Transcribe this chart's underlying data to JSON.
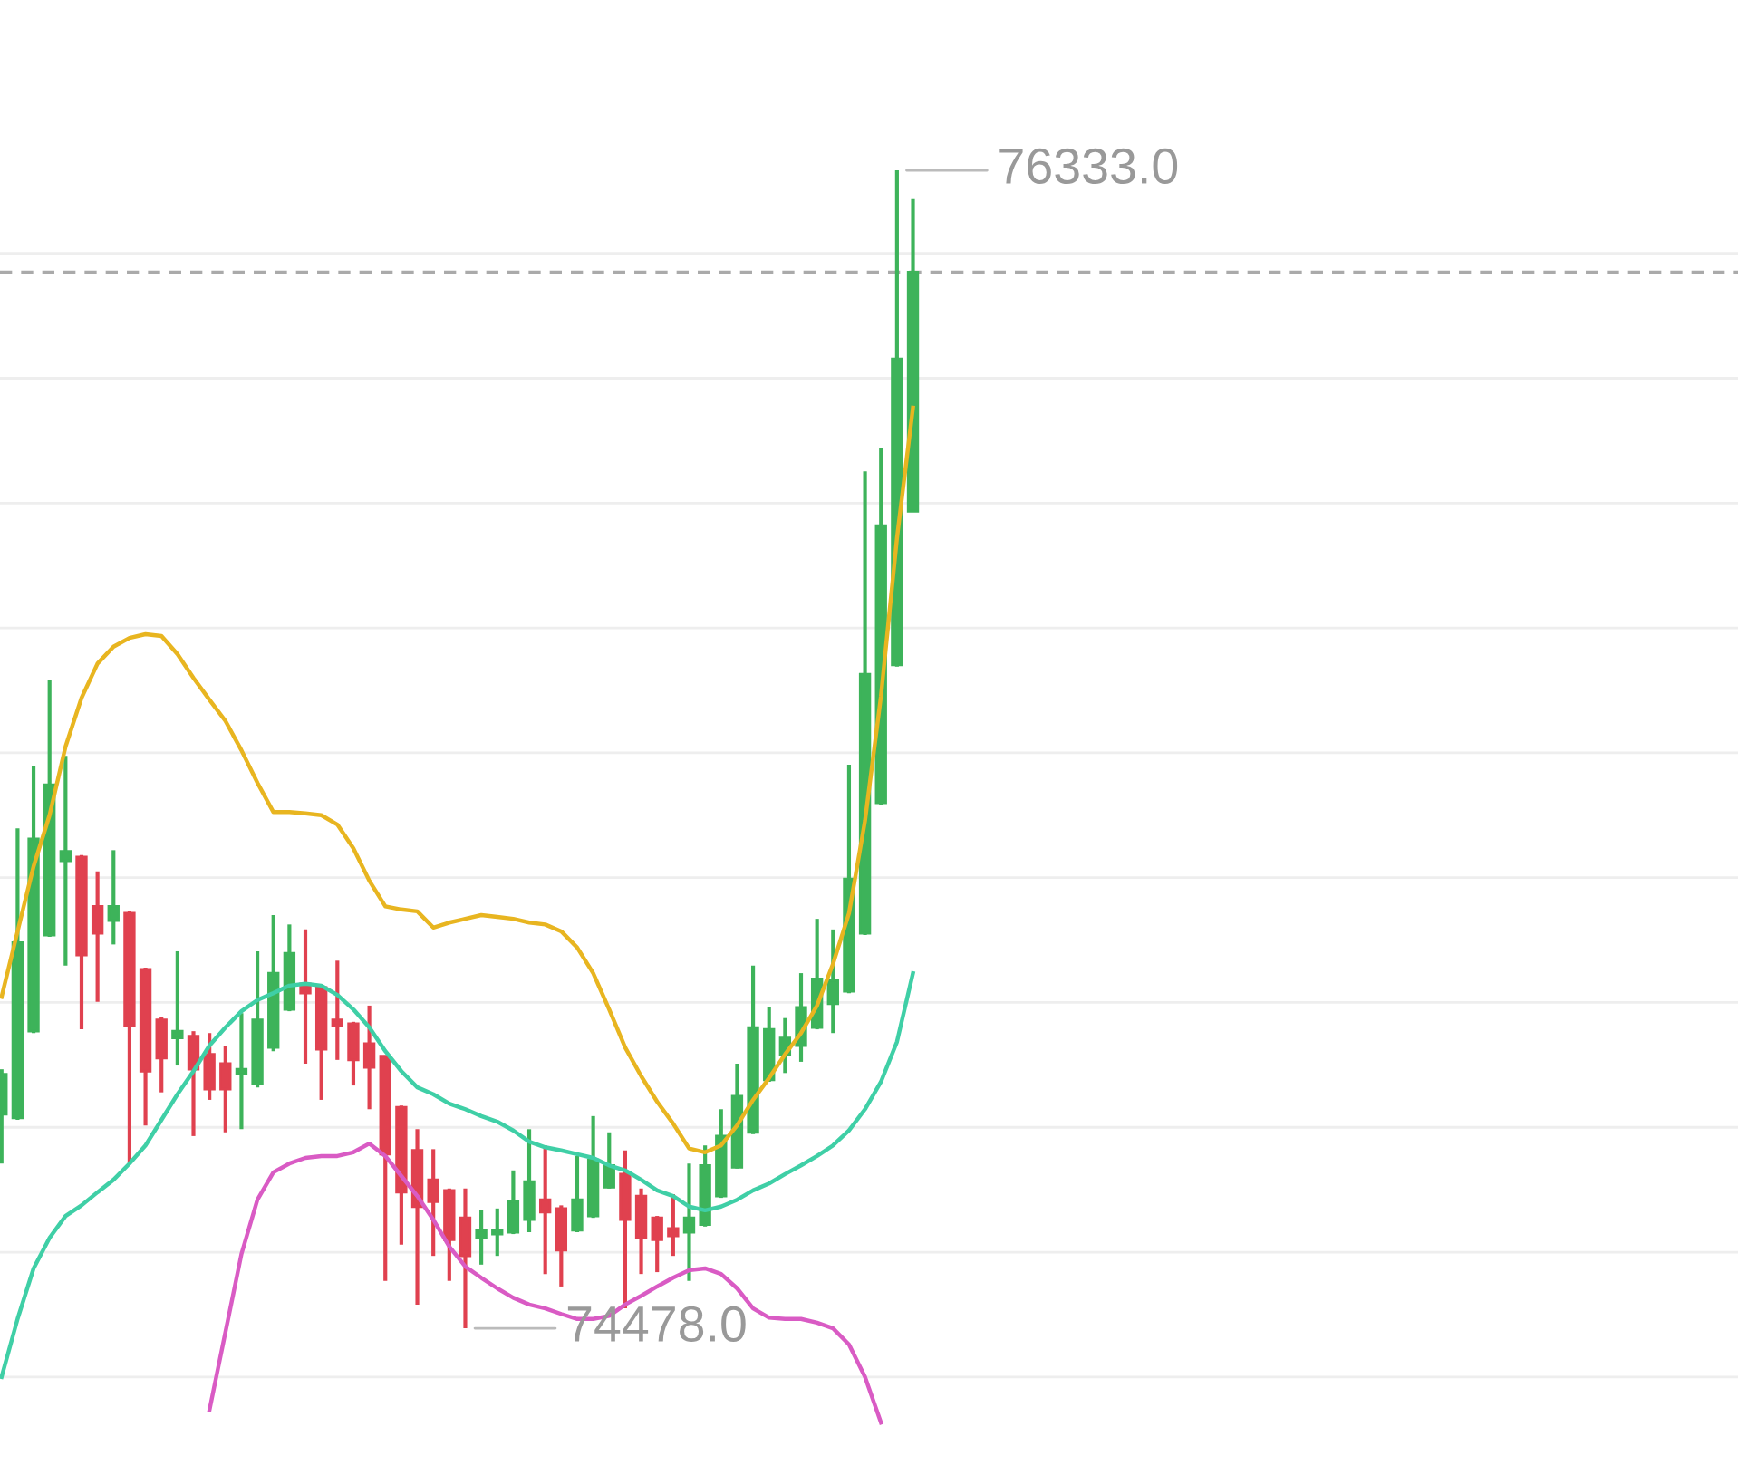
{
  "chart_data": {
    "type": "candlestick",
    "categories": [
      null,
      null,
      null,
      null,
      null,
      null,
      null,
      null,
      null,
      null,
      null,
      null,
      null,
      null,
      null,
      null,
      null,
      null,
      null,
      null,
      null,
      null,
      null,
      null,
      null,
      null,
      null,
      null,
      null,
      null,
      null,
      null,
      null,
      null,
      null,
      null,
      null,
      null,
      null,
      null,
      null,
      null,
      null,
      null,
      null,
      null,
      null,
      null,
      null,
      null,
      null,
      null,
      null,
      null,
      null,
      null,
      null,
      null
    ],
    "ohlc": [
      [
        74821,
        74893,
        74742,
        74885
      ],
      [
        74815,
        75279,
        74812,
        75096
      ],
      [
        74954,
        75378,
        74951,
        75262
      ],
      [
        75108,
        75517,
        75105,
        75349
      ],
      [
        75227,
        75395,
        75059,
        75242
      ],
      [
        75233,
        75236,
        74957,
        75076
      ],
      [
        75154,
        75210,
        75001,
        75111
      ],
      [
        75131,
        75244,
        75093,
        75154
      ],
      [
        75143,
        75146,
        74742,
        74963
      ],
      [
        75053,
        75056,
        74803,
        74890
      ],
      [
        74972,
        74977,
        74856,
        74911
      ],
      [
        74943,
        75082,
        74899,
        74954
      ],
      [
        74946,
        74954,
        74786,
        74893
      ],
      [
        74917,
        74951,
        74844,
        74861
      ],
      [
        74902,
        74931,
        74792,
        74861
      ],
      [
        74885,
        74983,
        74797,
        74893
      ],
      [
        74870,
        75082,
        74864,
        74972
      ],
      [
        74928,
        75140,
        74922,
        75047
      ],
      [
        74989,
        75125,
        74986,
        75079
      ],
      [
        75030,
        75117,
        74902,
        75015
      ],
      [
        75024,
        75027,
        74844,
        74925
      ],
      [
        74972,
        75067,
        74908,
        74963
      ],
      [
        74966,
        74969,
        74867,
        74908
      ],
      [
        74934,
        74995,
        74829,
        74896
      ],
      [
        74914,
        74914,
        74554,
        74757
      ],
      [
        74832,
        74835,
        74612,
        74696
      ],
      [
        74763,
        74797,
        74516,
        74673
      ],
      [
        74716,
        74765,
        74594,
        74681
      ],
      [
        74699,
        74702,
        74554,
        74620
      ],
      [
        74655,
        74702,
        74478,
        74594
      ],
      [
        74623,
        74667,
        74580,
        74635
      ],
      [
        74629,
        74670,
        74594,
        74635
      ],
      [
        74632,
        74731,
        74629,
        74681
      ],
      [
        74652,
        74797,
        74632,
        74713
      ],
      [
        74684,
        74771,
        74565,
        74664
      ],
      [
        74670,
        74675,
        74545,
        74603
      ],
      [
        74635,
        74754,
        74632,
        74684
      ],
      [
        74658,
        74818,
        74655,
        74748
      ],
      [
        74704,
        74792,
        74702,
        74739
      ],
      [
        74725,
        74763,
        74510,
        74652
      ],
      [
        74690,
        74702,
        74565,
        74623
      ],
      [
        74655,
        74658,
        74568,
        74620
      ],
      [
        74638,
        74693,
        74594,
        74626
      ],
      [
        74632,
        74742,
        74554,
        74655
      ],
      [
        74644,
        74771,
        74641,
        74739
      ],
      [
        74690,
        74829,
        74687,
        74786
      ],
      [
        74736,
        74902,
        74734,
        74850
      ],
      [
        74792,
        75059,
        74789,
        74960
      ],
      [
        74876,
        74992,
        74873,
        74957
      ],
      [
        74917,
        74975,
        74887,
        74943
      ],
      [
        74931,
        75047,
        74905,
        74992
      ],
      [
        74960,
        75134,
        74957,
        75038
      ],
      [
        74998,
        75117,
        74951,
        75035
      ],
      [
        75018,
        75381,
        75015,
        75198
      ],
      [
        75111,
        75851,
        75108,
        75526
      ],
      [
        75320,
        75889,
        75317,
        75764
      ],
      [
        75541,
        76333,
        75538,
        76031
      ],
      [
        75787,
        76287,
        75787,
        76170
      ]
    ],
    "colors": [
      "#3db35a",
      "#3db35a",
      "#3db35a",
      "#3db35a",
      "#3db35a",
      "#e0414f",
      "#e0414f",
      "#3db35a",
      "#e0414f",
      "#e0414f",
      "#e0414f",
      "#3db35a",
      "#e0414f",
      "#e0414f",
      "#e0414f",
      "#3db35a",
      "#3db35a",
      "#3db35a",
      "#3db35a",
      "#e0414f",
      "#e0414f",
      "#e0414f",
      "#e0414f",
      "#e0414f",
      "#e0414f",
      "#e0414f",
      "#e0414f",
      "#e0414f",
      "#e0414f",
      "#e0414f",
      "#3db35a",
      "#3db35a",
      "#3db35a",
      "#3db35a",
      "#e0414f",
      "#e0414f",
      "#3db35a",
      "#3db35a",
      "#3db35a",
      "#e0414f",
      "#e0414f",
      "#e0414f",
      "#e0414f",
      "#3db35a",
      "#3db35a",
      "#3db35a",
      "#3db35a",
      "#3db35a",
      "#3db35a",
      "#3db35a",
      "#3db35a",
      "#3db35a",
      "#3db35a",
      "#3db35a",
      "#3db35a",
      "#3db35a",
      "#3db35a",
      "#3db35a"
    ],
    "series": [
      {
        "type": "line",
        "color": "#e8b520",
        "values": [
          75009,
          75114,
          75218,
          75300,
          75410,
          75488,
          75543,
          75570,
          75584,
          75590,
          75587,
          75558,
          75520,
          75485,
          75451,
          75404,
          75352,
          75305,
          75305,
          75303,
          75300,
          75285,
          75247,
          75195,
          75154,
          75149,
          75146,
          75120,
          75128,
          75134,
          75140,
          75137,
          75134,
          75128,
          75125,
          75114,
          75088,
          75047,
          74989,
          74928,
          74882,
          74841,
          74806,
          74766,
          74760,
          74771,
          74803,
          74844,
          74879,
          74917,
          74951,
          74995,
          75062,
          75143,
          75291,
          75491,
          75744,
          75953
        ]
      },
      {
        "type": "line",
        "color": "#3fcfa6",
        "values": [
          74400,
          74493,
          74574,
          74623,
          74658,
          74675,
          74696,
          74716,
          74742,
          74771,
          74812,
          74853,
          74890,
          74931,
          74960,
          74986,
          75004,
          75015,
          75027,
          75030,
          75027,
          75012,
          74989,
          74960,
          74922,
          74890,
          74864,
          74853,
          74838,
          74829,
          74818,
          74809,
          74795,
          74777,
          74768,
          74763,
          74757,
          74751,
          74739,
          74731,
          74716,
          74699,
          74690,
          74673,
          74667,
          74673,
          74684,
          74699,
          74710,
          74725,
          74739,
          74754,
          74771,
          74795,
          74829,
          74873,
          74937,
          75047
        ]
      },
      {
        "type": "line",
        "color": "#d95bc4",
        "values": [
          null,
          null,
          null,
          null,
          null,
          null,
          null,
          null,
          null,
          null,
          null,
          null,
          null,
          74347,
          74472,
          74597,
          74684,
          74728,
          74742,
          74751,
          74754,
          74754,
          74760,
          74774,
          74754,
          74722,
          74690,
          74652,
          74609,
          74577,
          74559,
          74542,
          74527,
          74516,
          74510,
          74501,
          74493,
          74493,
          74498,
          74516,
          74530,
          74545,
          74559,
          74571,
          74574,
          74565,
          74542,
          74510,
          74495,
          74493,
          74493,
          74487,
          74478,
          74452,
          74400,
          74327,
          null,
          null
        ]
      }
    ],
    "ylim": [
      74243,
      76606
    ],
    "yticks": [
      {
        "value": 74400,
        "label": null
      },
      {
        "value": 74600,
        "label": null
      },
      {
        "value": 74800,
        "label": null
      },
      {
        "value": 75000,
        "label": null
      },
      {
        "value": 75200,
        "label": null
      },
      {
        "value": 75400,
        "label": null
      },
      {
        "value": 75600,
        "label": null
      },
      {
        "value": 75800,
        "label": null
      },
      {
        "value": 76000,
        "label": null
      },
      {
        "value": 76200,
        "label": null
      }
    ],
    "grid": "y",
    "ref_lines": [
      {
        "axis": "y",
        "value": 76170,
        "color": "#aaaaaa",
        "line_style": "dashed"
      }
    ],
    "annotations": [
      "76333.0",
      "74478.0"
    ]
  }
}
